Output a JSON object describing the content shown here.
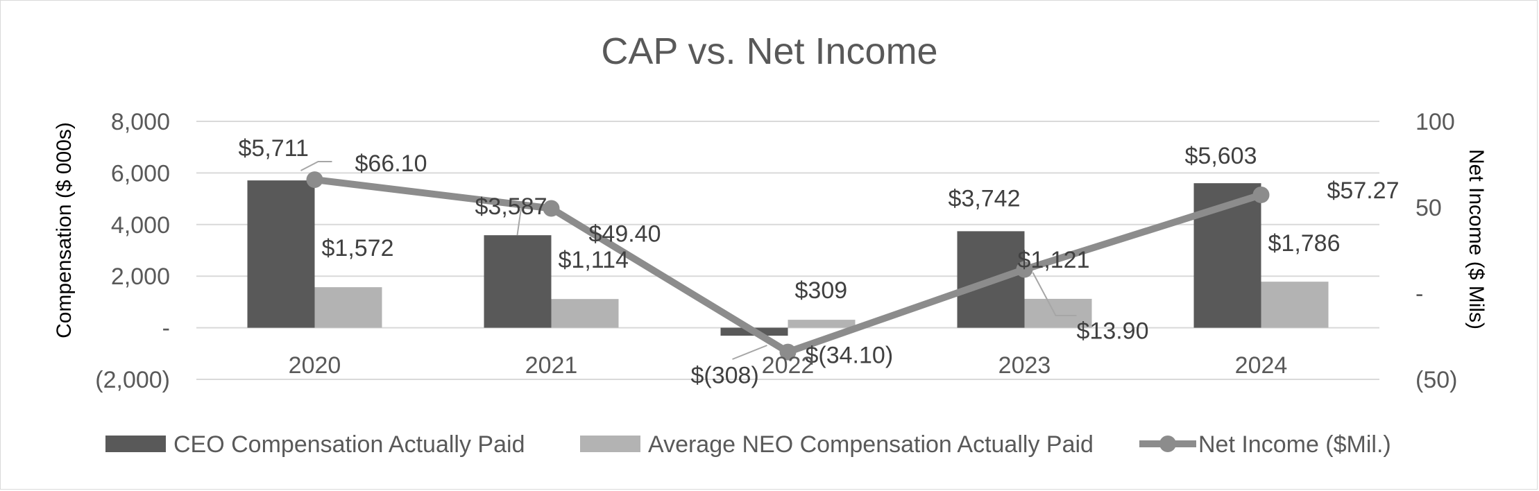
{
  "chart_data": {
    "type": "bar",
    "title": "CAP vs. Net Income",
    "categories": [
      "2020",
      "2021",
      "2022",
      "2023",
      "2024"
    ],
    "ylabel": "Compensation ($ 000s)",
    "y2label": "Net Income ($ Mils)",
    "ylim": [
      -2000,
      8000
    ],
    "y2lim": [
      -50,
      100
    ],
    "y_ticks": [
      "(2,000)",
      "-",
      "2,000",
      "4,000",
      "6,000",
      "8,000"
    ],
    "y2_ticks": [
      "(50)",
      "-",
      "50",
      "100"
    ],
    "grid": true,
    "legend_position": "bottom",
    "series": [
      {
        "name": "CEO Compensation Actually Paid",
        "type": "bar",
        "axis": "left",
        "color": "#595959",
        "values": [
          5711,
          3587,
          -308,
          3742,
          5603
        ],
        "labels": [
          "$5,711",
          "$3,587",
          "$(308)",
          "$3,742",
          "$5,603"
        ]
      },
      {
        "name": "Average NEO Compensation Actually Paid",
        "type": "bar",
        "axis": "left",
        "color": "#b3b3b3",
        "values": [
          1572,
          1114,
          309,
          1121,
          1786
        ],
        "labels": [
          "$1,572",
          "$1,114",
          "$309",
          "$1,121",
          "$1,786"
        ]
      },
      {
        "name": "Net Income ($Mil.)",
        "type": "line",
        "axis": "right",
        "color": "#8c8c8c",
        "values": [
          66.1,
          49.4,
          -34.1,
          13.9,
          57.27
        ],
        "labels": [
          "$66.10",
          "$49.40",
          "$(34.10)",
          "$13.90",
          "$57.27"
        ]
      }
    ]
  }
}
